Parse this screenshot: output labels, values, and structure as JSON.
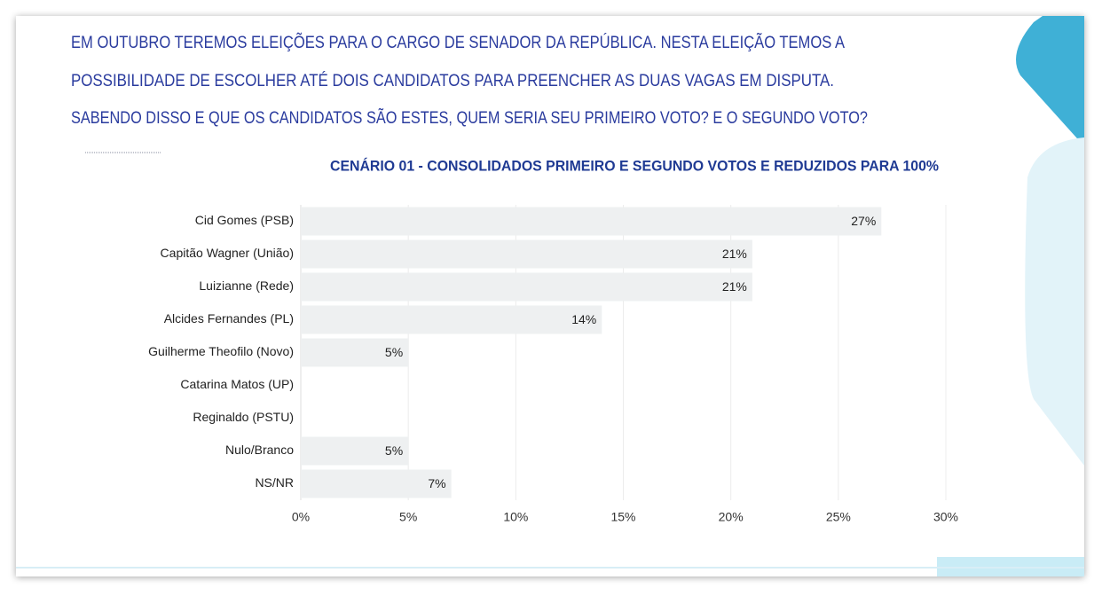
{
  "header": {
    "lines": [
      "EM OUTUBRO TEREMOS ELEIÇÕES PARA O CARGO DE SENADOR DA REPÚBLICA. NESTA ELEIÇÃO TEMOS A",
      "POSSIBILIDADE DE ESCOLHER ATÉ DOIS CANDIDATOS PARA PREENCHER AS DUAS VAGAS EM DISPUTA.",
      "SABENDO DISSO E QUE OS CANDIDATOS SÃO ESTES, QUEM SERIA SEU PRIMEIRO VOTO? E O SEGUNDO VOTO?"
    ]
  },
  "chart_data": {
    "type": "hbar",
    "title": "CENÁRIO 01 - CONSOLIDADOS PRIMEIRO E SEGUNDO VOTOS E REDUZIDOS PARA 100%",
    "categories": [
      "Cid Gomes (PSB)",
      "Capitão Wagner (União)",
      "Luizianne (Rede)",
      "Alcides Fernandes (PL)",
      "Guilherme Theofilo (Novo)",
      "Catarina Matos (UP)",
      "Reginaldo (PSTU)",
      "Nulo/Branco",
      "NS/NR"
    ],
    "values": [
      27,
      21,
      21,
      14,
      5,
      0,
      0,
      5,
      7
    ],
    "value_labels": [
      "27%",
      "21%",
      "21%",
      "14%",
      "5%",
      null,
      null,
      "5%",
      "7%"
    ],
    "color": "#eef0f1",
    "xlim": [
      0,
      30
    ],
    "xticks": [
      {
        "value": 0,
        "label": "0%"
      },
      {
        "value": 5,
        "label": "5%"
      },
      {
        "value": 10,
        "label": "10%"
      },
      {
        "value": 15,
        "label": "15%"
      },
      {
        "value": 20,
        "label": "20%"
      },
      {
        "value": 25,
        "label": "25%"
      },
      {
        "value": 30,
        "label": "30%"
      }
    ],
    "grid": true
  }
}
